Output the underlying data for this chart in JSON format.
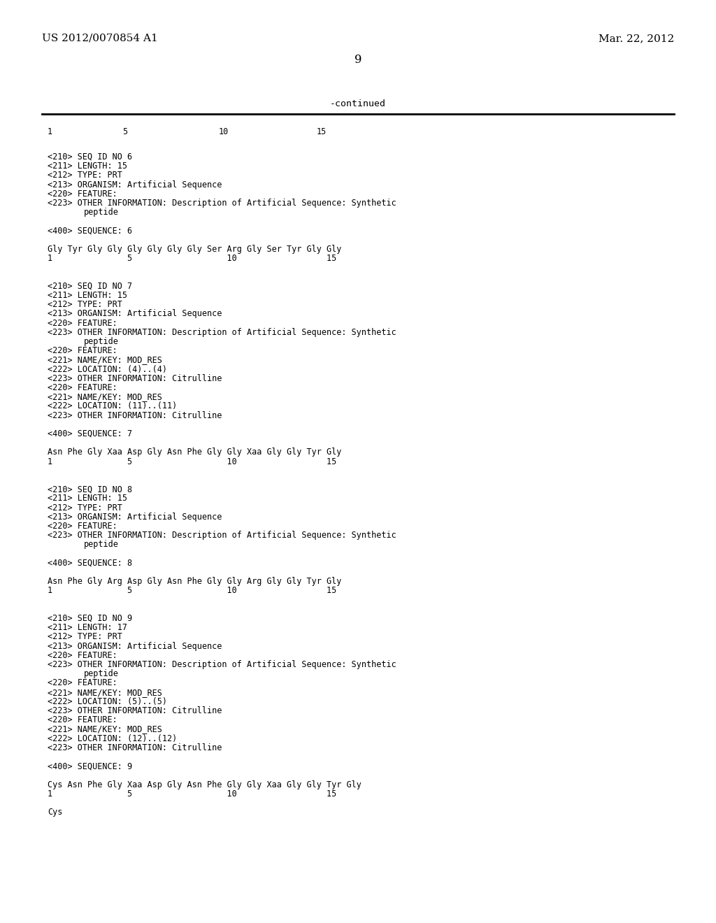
{
  "header_left": "US 2012/0070854 A1",
  "header_right": "Mar. 22, 2012",
  "page_number": "9",
  "continued_label": "-continued",
  "background_color": "#ffffff",
  "text_color": "#000000",
  "header_font_size": 11,
  "page_num_font_size": 12,
  "mono_font_size": 8.5,
  "content_lines": [
    "<210> SEQ ID NO 6",
    "<211> LENGTH: 15",
    "<212> TYPE: PRT",
    "<213> ORGANISM: Artificial Sequence",
    "<220> FEATURE:",
    "<223> OTHER INFORMATION: Description of Artificial Sequence: Synthetic",
    "      peptide",
    "",
    "<400> SEQUENCE: 6",
    "",
    "Gly Tyr Gly Gly Gly Gly Gly Gly Ser Arg Gly Ser Tyr Gly Gly",
    "1               5                   10                  15",
    "",
    "",
    "<210> SEQ ID NO 7",
    "<211> LENGTH: 15",
    "<212> TYPE: PRT",
    "<213> ORGANISM: Artificial Sequence",
    "<220> FEATURE:",
    "<223> OTHER INFORMATION: Description of Artificial Sequence: Synthetic",
    "      peptide",
    "<220> FEATURE:",
    "<221> NAME/KEY: MOD_RES",
    "<222> LOCATION: (4)..(4)",
    "<223> OTHER INFORMATION: Citrulline",
    "<220> FEATURE:",
    "<221> NAME/KEY: MOD_RES",
    "<222> LOCATION: (11)..(11)",
    "<223> OTHER INFORMATION: Citrulline",
    "",
    "<400> SEQUENCE: 7",
    "",
    "Asn Phe Gly Xaa Asp Gly Asn Phe Gly Gly Xaa Gly Gly Tyr Gly",
    "1               5                   10                  15",
    "",
    "",
    "<210> SEQ ID NO 8",
    "<211> LENGTH: 15",
    "<212> TYPE: PRT",
    "<213> ORGANISM: Artificial Sequence",
    "<220> FEATURE:",
    "<223> OTHER INFORMATION: Description of Artificial Sequence: Synthetic",
    "      peptide",
    "",
    "<400> SEQUENCE: 8",
    "",
    "Asn Phe Gly Arg Asp Gly Asn Phe Gly Gly Arg Gly Gly Tyr Gly",
    "1               5                   10                  15",
    "",
    "",
    "<210> SEQ ID NO 9",
    "<211> LENGTH: 17",
    "<212> TYPE: PRT",
    "<213> ORGANISM: Artificial Sequence",
    "<220> FEATURE:",
    "<223> OTHER INFORMATION: Description of Artificial Sequence: Synthetic",
    "      peptide",
    "<220> FEATURE:",
    "<221> NAME/KEY: MOD_RES",
    "<222> LOCATION: (5)..(5)",
    "<223> OTHER INFORMATION: Citrulline",
    "<220> FEATURE:",
    "<221> NAME/KEY: MOD_RES",
    "<222> LOCATION: (12)..(12)",
    "<223> OTHER INFORMATION: Citrulline",
    "",
    "<400> SEQUENCE: 9",
    "",
    "Cys Asn Phe Gly Xaa Asp Gly Asn Phe Gly Gly Xaa Gly Gly Tyr Gly",
    "1               5                   10                  15",
    "",
    "Cys"
  ]
}
